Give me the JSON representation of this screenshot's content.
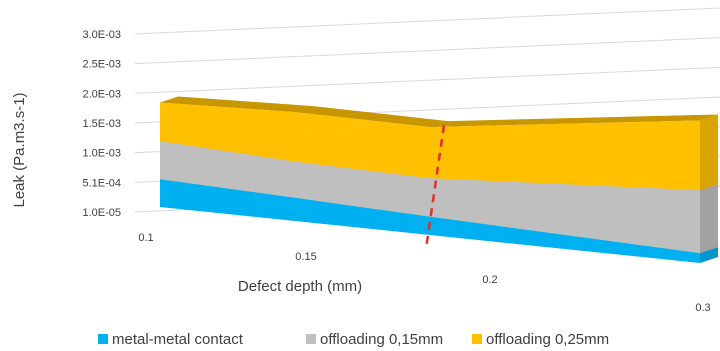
{
  "chart_data": {
    "type": "area",
    "subtype": "3d-area",
    "title": "",
    "xlabel": "Defect depth (mm)",
    "ylabel": "Leak (Pa.m3.s-1)",
    "x": [
      0.1,
      0.15,
      0.2,
      0.3
    ],
    "x_tick_labels": [
      "0.1",
      "0.15",
      "0.2",
      "0.3"
    ],
    "y_tick_labels": [
      "1.0E-05",
      "5.1E-04",
      "1.0E-03",
      "1.5E-03",
      "2.0E-03",
      "2.5E-03",
      "3.0E-03"
    ],
    "ylim": [
      1e-05,
      0.003
    ],
    "grid": true,
    "legend_position": "bottom",
    "series": [
      {
        "name": "metal-metal contact",
        "color": "#00B0F0",
        "values": [
          0.00057,
          0.00048,
          0.00038,
          0.00021
        ]
      },
      {
        "name": "offloading 0,15mm",
        "color": "#BFBFBF",
        "values": [
          0.00134,
          0.00121,
          0.00116,
          0.00148
        ]
      },
      {
        "name": "offloading 0,25mm",
        "color": "#FFC000",
        "values": [
          0.00212,
          0.00221,
          0.00219,
          0.00289
        ]
      }
    ],
    "annotations": [
      {
        "type": "dashed-vertical-line",
        "x": 0.2,
        "color": "#E03030"
      }
    ]
  }
}
